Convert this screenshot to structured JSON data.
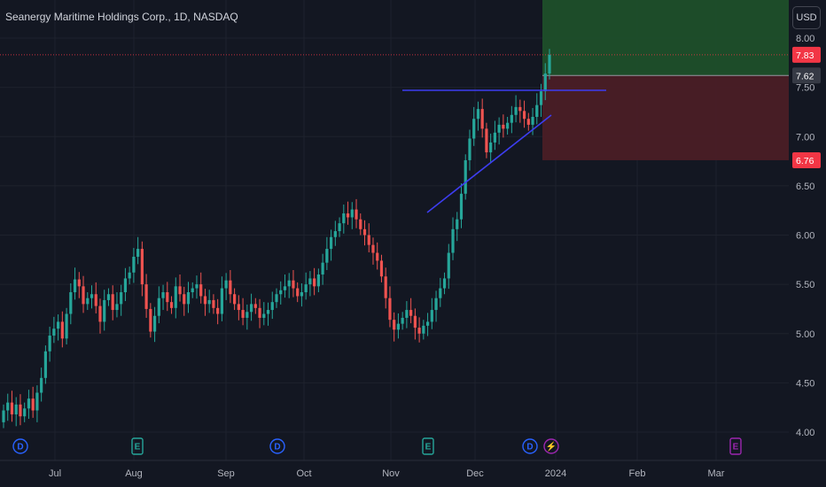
{
  "header": {
    "title": "Seanergy Maritime Holdings Corp., 1D, NASDAQ",
    "currency_button": "USD"
  },
  "colors": {
    "background": "#131722",
    "up": "#26a69a",
    "down": "#ef5350",
    "trendline": "#3d3df0",
    "profit_zone": "#1e4f2a",
    "loss_zone": "#4a1d26",
    "badge_red": "#f23645",
    "badge_gray": "#363a45"
  },
  "price_axis": {
    "ticks": [
      "4.00",
      "4.50",
      "5.00",
      "5.50",
      "6.00",
      "6.50",
      "7.00",
      "7.50",
      "8.00"
    ],
    "badges": [
      {
        "label": "7.83",
        "value": 7.83,
        "color": "#f23645"
      },
      {
        "label": "7.62",
        "value": 7.62,
        "color": "#363a45"
      },
      {
        "label": "6.76",
        "value": 6.76,
        "color": "#f23645"
      }
    ]
  },
  "time_axis": [
    "Jul",
    "Aug",
    "Sep",
    "Oct",
    "Nov",
    "Dec",
    "2024",
    "Feb",
    "Mar"
  ],
  "events": [
    {
      "type": "dividend",
      "glyph": "D",
      "icon": "dividend-icon",
      "color": "#2962ff"
    },
    {
      "type": "earnings",
      "glyph": "E",
      "icon": "earnings-icon",
      "color": "#26a69a"
    },
    {
      "type": "dividend",
      "glyph": "D",
      "icon": "dividend-icon",
      "color": "#2962ff"
    },
    {
      "type": "earnings",
      "glyph": "E",
      "icon": "earnings-icon",
      "color": "#26a69a"
    },
    {
      "type": "dividend",
      "glyph": "D",
      "icon": "dividend-icon",
      "color": "#2962ff"
    },
    {
      "type": "split",
      "glyph": "⚡",
      "icon": "lightning-icon",
      "color": "#9c27b0"
    },
    {
      "type": "earnings",
      "glyph": "E",
      "icon": "earnings-icon",
      "color": "#9c27b0"
    }
  ],
  "chart_data": {
    "type": "candlestick",
    "title": "Seanergy Maritime Holdings Corp., 1D, NASDAQ",
    "ylim": [
      4.0,
      8.0
    ],
    "last_price": 7.83,
    "entry_price": 7.62,
    "stop_price": 6.76,
    "closes": [
      4.22,
      4.3,
      4.18,
      4.28,
      4.16,
      4.24,
      4.34,
      4.22,
      4.4,
      4.55,
      4.82,
      4.98,
      5.05,
      5.12,
      4.95,
      5.2,
      5.42,
      5.55,
      5.48,
      5.3,
      5.36,
      5.4,
      5.28,
      5.12,
      5.34,
      5.4,
      5.24,
      5.3,
      5.42,
      5.56,
      5.62,
      5.78,
      5.86,
      5.5,
      5.25,
      5.02,
      5.18,
      5.36,
      5.42,
      5.32,
      5.26,
      5.48,
      5.4,
      5.3,
      5.42,
      5.46,
      5.5,
      5.38,
      5.3,
      5.34,
      5.26,
      5.2,
      5.46,
      5.54,
      5.4,
      5.3,
      5.24,
      5.16,
      5.22,
      5.3,
      5.26,
      5.16,
      5.2,
      5.24,
      5.32,
      5.4,
      5.44,
      5.48,
      5.54,
      5.46,
      5.38,
      5.42,
      5.5,
      5.56,
      5.48,
      5.6,
      5.72,
      5.86,
      5.98,
      6.04,
      6.12,
      6.22,
      6.18,
      6.26,
      6.16,
      6.06,
      6.0,
      5.9,
      5.82,
      5.74,
      5.58,
      5.36,
      5.14,
      5.04,
      5.1,
      5.16,
      5.24,
      5.18,
      5.06,
      5.0,
      5.08,
      5.12,
      5.24,
      5.36,
      5.46,
      5.56,
      5.82,
      6.06,
      6.16,
      6.42,
      6.76,
      6.98,
      7.18,
      7.28,
      7.08,
      6.84,
      6.94,
      7.04,
      7.12,
      7.08,
      7.14,
      7.22,
      7.3,
      7.26,
      7.18,
      7.12,
      7.2,
      7.32,
      7.46,
      7.64,
      7.83
    ],
    "opens": [
      4.1,
      4.22,
      4.3,
      4.18,
      4.28,
      4.16,
      4.24,
      4.34,
      4.22,
      4.4,
      4.55,
      4.82,
      4.98,
      5.05,
      5.12,
      4.95,
      5.2,
      5.42,
      5.55,
      5.48,
      5.3,
      5.36,
      5.4,
      5.28,
      5.12,
      5.34,
      5.4,
      5.24,
      5.3,
      5.42,
      5.56,
      5.62,
      5.78,
      5.86,
      5.5,
      5.25,
      5.02,
      5.18,
      5.36,
      5.42,
      5.32,
      5.26,
      5.48,
      5.4,
      5.3,
      5.42,
      5.46,
      5.5,
      5.38,
      5.3,
      5.34,
      5.26,
      5.2,
      5.46,
      5.54,
      5.4,
      5.3,
      5.24,
      5.16,
      5.22,
      5.3,
      5.26,
      5.16,
      5.2,
      5.24,
      5.32,
      5.4,
      5.44,
      5.48,
      5.54,
      5.46,
      5.38,
      5.42,
      5.5,
      5.56,
      5.48,
      5.6,
      5.72,
      5.86,
      5.98,
      6.04,
      6.12,
      6.22,
      6.18,
      6.26,
      6.16,
      6.06,
      6.0,
      5.9,
      5.82,
      5.74,
      5.58,
      5.36,
      5.14,
      5.04,
      5.1,
      5.16,
      5.24,
      5.18,
      5.06,
      5.0,
      5.08,
      5.12,
      5.24,
      5.36,
      5.46,
      5.56,
      5.82,
      6.06,
      6.16,
      6.42,
      6.76,
      6.98,
      7.18,
      7.28,
      7.08,
      6.84,
      6.94,
      7.04,
      7.12,
      7.08,
      7.14,
      7.22,
      7.3,
      7.26,
      7.18,
      7.12,
      7.2,
      7.32,
      7.46,
      7.64
    ]
  }
}
